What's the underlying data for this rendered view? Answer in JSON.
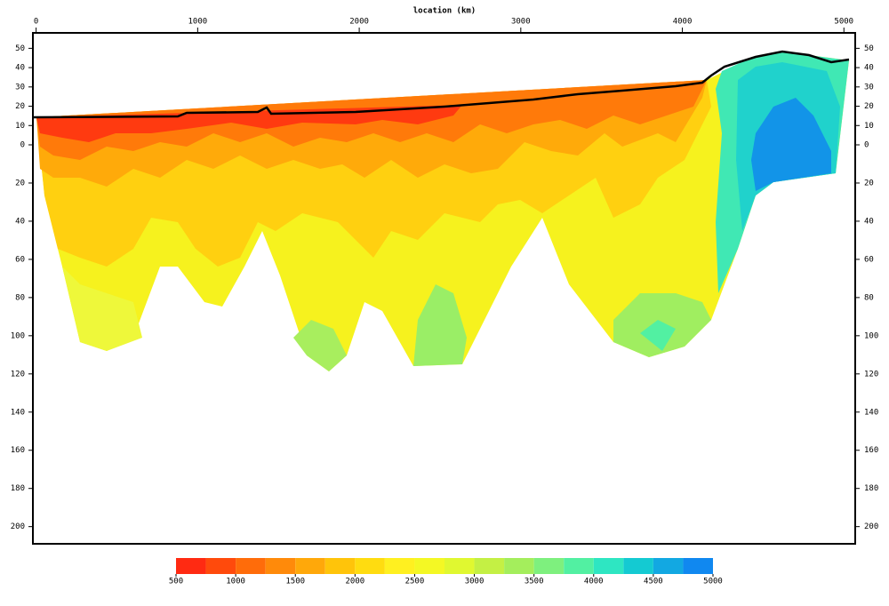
{
  "chart_data": {
    "type": "section",
    "x_axis_label": "location (km)",
    "xlim": [
      -20,
      5070
    ],
    "xticks": [
      0,
      1000,
      2000,
      3000,
      4000,
      5000
    ],
    "ylim_elevation": [
      0,
      58
    ],
    "yticks_elevation": [
      10,
      20,
      30,
      40,
      50
    ],
    "ylim_depth": [
      0,
      209
    ],
    "yticks_depth": [
      0,
      20,
      40,
      60,
      80,
      100,
      120,
      140,
      160,
      180,
      200
    ],
    "colorbar": {
      "levels": [
        500,
        750,
        1000,
        1250,
        1500,
        1750,
        2000,
        2250,
        2500,
        2750,
        3000,
        3250,
        3500,
        3750,
        4000,
        4250,
        4500,
        4750,
        5000
      ],
      "colors": [
        "#ff2a12",
        "#ff4a0c",
        "#ff6c0a",
        "#ff8a0a",
        "#ffa80a",
        "#ffc40a",
        "#ffdc10",
        "#fff020",
        "#f4f824",
        "#e0f830",
        "#c4f044",
        "#a4ee5c",
        "#7ef07e",
        "#52f0a2",
        "#2ee6c2",
        "#14cad2",
        "#12a8e2",
        "#1088f0"
      ],
      "ticks": [
        500,
        1000,
        1500,
        2000,
        2500,
        3000,
        3500,
        4000,
        4500,
        5000
      ]
    }
  }
}
